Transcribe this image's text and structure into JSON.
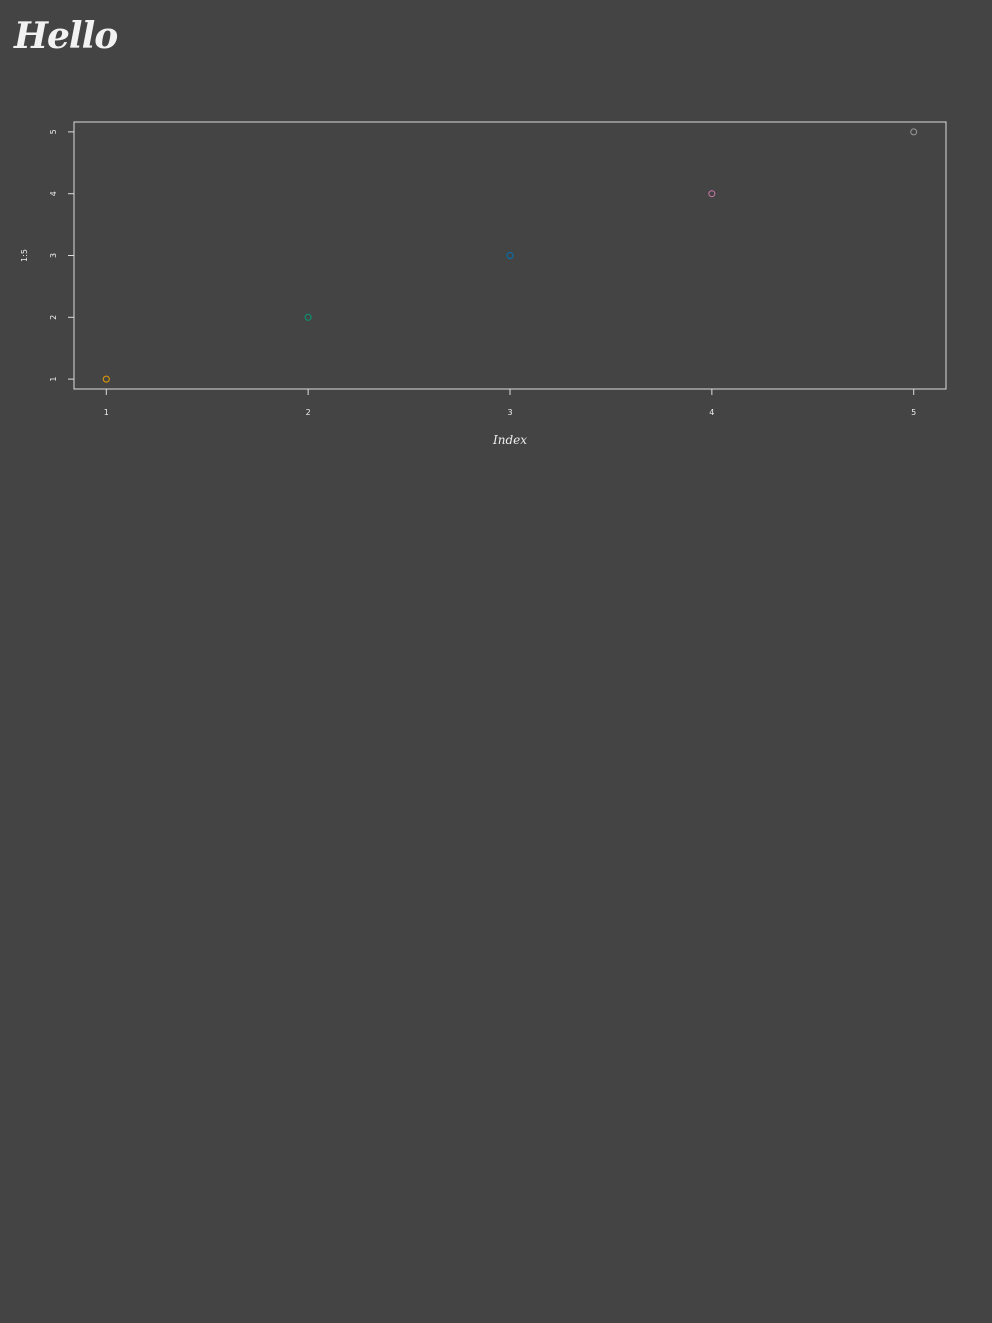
{
  "page": {
    "title": "Hello",
    "background": "#444444"
  },
  "chart_data": {
    "type": "scatter",
    "title": "",
    "xlabel": "Index",
    "ylabel": "1:5",
    "x": [
      1,
      2,
      3,
      4,
      5
    ],
    "y": [
      1,
      2,
      3,
      4,
      5
    ],
    "xlim": [
      0.84,
      5.16
    ],
    "ylim": [
      0.84,
      5.16
    ],
    "xticks": [
      "1",
      "2",
      "3",
      "4",
      "5"
    ],
    "yticks": [
      "1",
      "2",
      "3",
      "4",
      "5"
    ],
    "marker": "open-circle",
    "point_colors": [
      "#e69f00",
      "#009e73",
      "#0072b2",
      "#cc79a7",
      "#999999"
    ],
    "axis_color": "#dddddd",
    "grid": false,
    "legend": "none"
  }
}
